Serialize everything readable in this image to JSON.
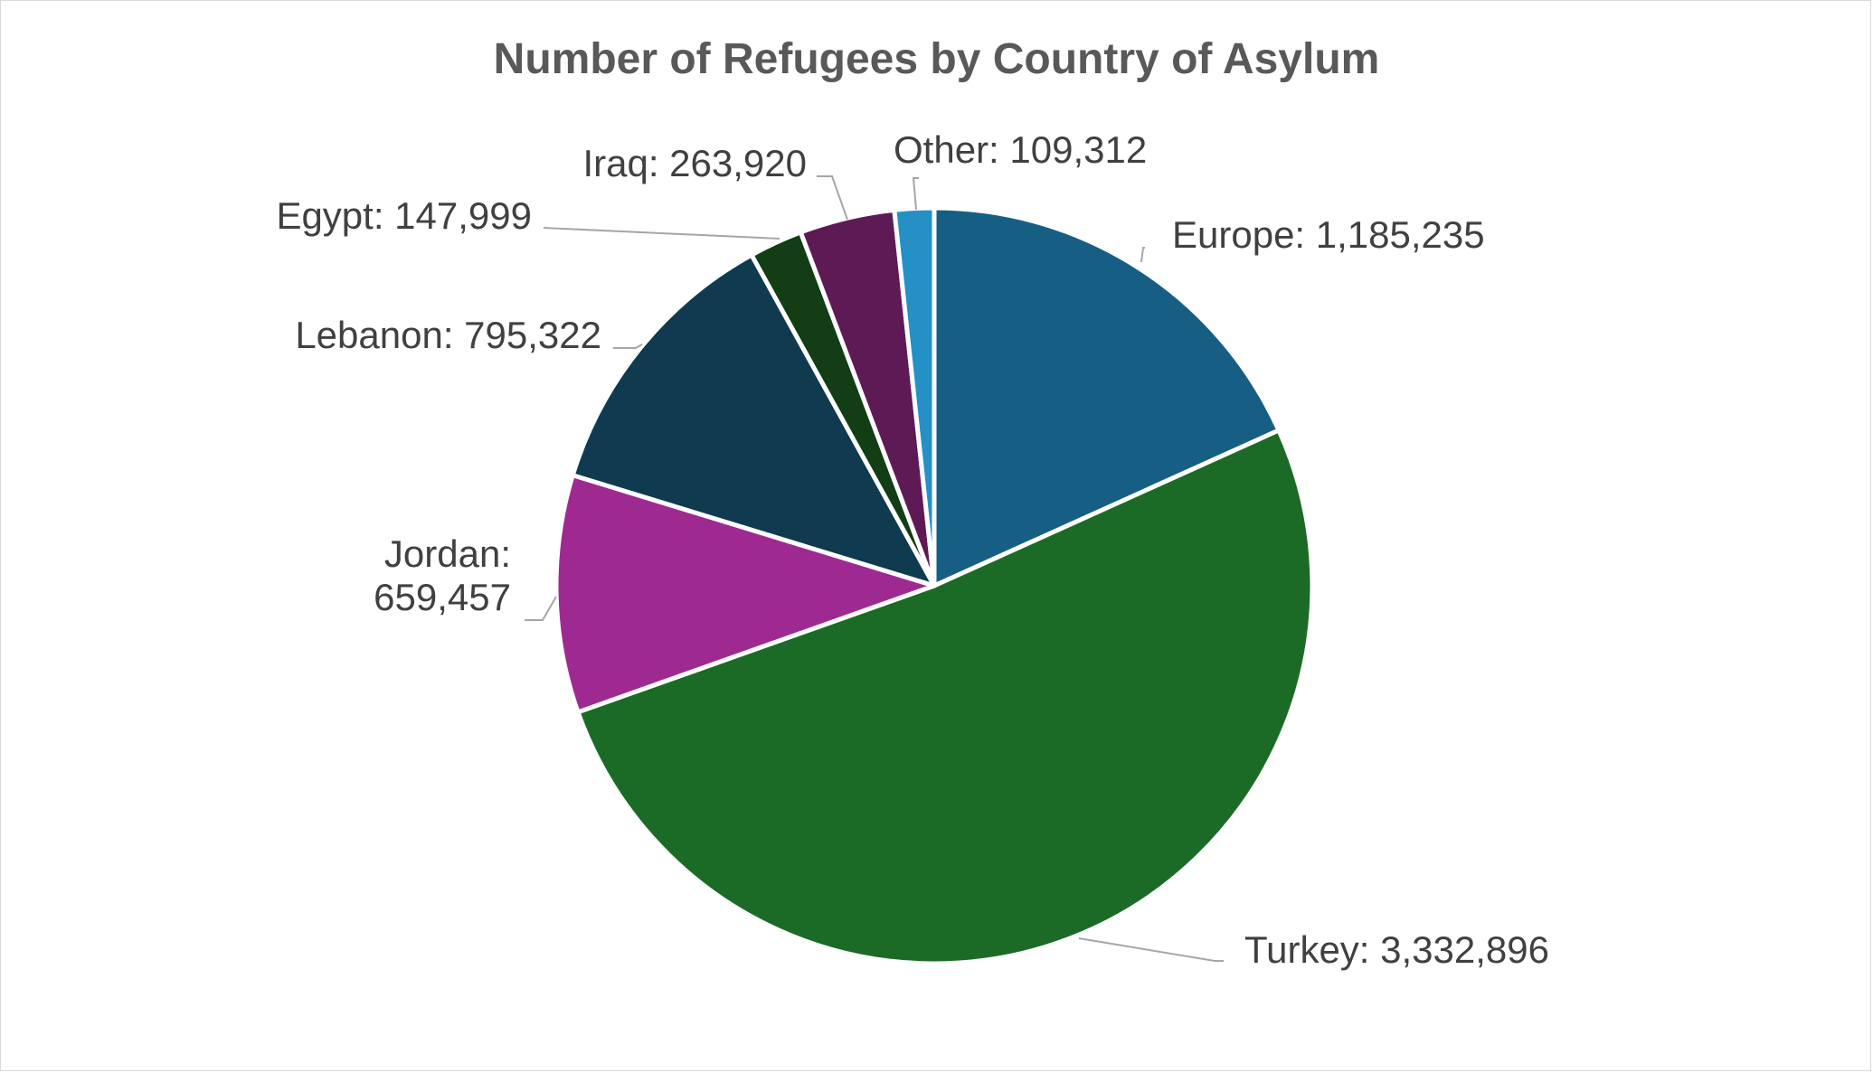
{
  "chart_data": {
    "type": "pie",
    "title": "Number of Refugees by Country of Asylum",
    "start_angle_deg": 0,
    "direction": "clockwise",
    "slices": [
      {
        "name": "Europe",
        "label": "Europe: 1,185,235",
        "value": 1185235,
        "color": "#175E84"
      },
      {
        "name": "Turkey",
        "label": "Turkey: 3,332,896",
        "value": 3332896,
        "color": "#1B6B26"
      },
      {
        "name": "Jordan",
        "label": [
          "Jordan:",
          "659,457"
        ],
        "value": 659457,
        "color": "#9E2A91"
      },
      {
        "name": "Lebanon",
        "label": "Lebanon: 795,322",
        "value": 795322,
        "color": "#0F3A4F"
      },
      {
        "name": "Egypt",
        "label": "Egypt: 147,999",
        "value": 147999,
        "color": "#133D15"
      },
      {
        "name": "Iraq",
        "label": "Iraq: 263,920",
        "value": 263920,
        "color": "#5E1A55"
      },
      {
        "name": "Other",
        "label": "Other: 109,312",
        "value": 109312,
        "color": "#2490C6"
      }
    ]
  }
}
